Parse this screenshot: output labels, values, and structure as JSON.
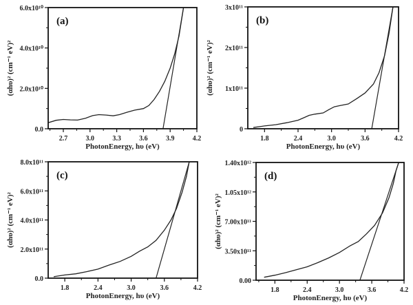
{
  "chart_data": [
    {
      "type": "line",
      "panel_label": "(a)",
      "xlabel": "PhotonEnergy, hυ (eV)",
      "ylabel": "(αhυ)² (cm⁻¹ eV)²",
      "xlim": [
        2.53,
        4.2
      ],
      "ylim": [
        0,
        60000000000.0
      ],
      "xticks": [
        2.7,
        3.0,
        3.3,
        3.6,
        3.9,
        4.2
      ],
      "xtick_labels": [
        "2.7",
        "3.0",
        "3.3",
        "3.6",
        "3.9",
        "4.2"
      ],
      "yticks": [
        0,
        20000000000.0,
        40000000000.0,
        60000000000.0
      ],
      "ytick_labels": [
        "0.0",
        "2.0x10¹⁰",
        "4.0x10¹⁰",
        "6.0x10¹⁰"
      ],
      "series": [
        {
          "name": "data",
          "x": [
            2.53,
            2.62,
            2.7,
            2.78,
            2.86,
            2.95,
            3.03,
            3.1,
            3.18,
            3.26,
            3.33,
            3.42,
            3.5,
            3.6,
            3.66,
            3.72,
            3.78,
            3.84,
            3.9,
            3.95,
            4.0,
            4.05
          ],
          "y": [
            3000000000.0,
            4200000000.0,
            4600000000.0,
            4400000000.0,
            4300000000.0,
            5200000000.0,
            6500000000.0,
            7000000000.0,
            6800000000.0,
            6400000000.0,
            7000000000.0,
            8200000000.0,
            9200000000.0,
            10000000000.0,
            11500000000.0,
            14500000000.0,
            18500000000.0,
            23500000000.0,
            30000000000.0,
            37000000000.0,
            46000000000.0,
            60000000000.0
          ]
        }
      ],
      "tangent": {
        "x": [
          3.82,
          4.05
        ],
        "y": [
          0,
          60000000000.0
        ]
      }
    },
    {
      "type": "line",
      "panel_label": "(b)",
      "xlabel": "PhotonEnergy, hυ (eV)",
      "ylabel": "(αhυ)² (cm⁻¹ eV)²",
      "xlim": [
        1.5,
        4.2
      ],
      "ylim": [
        0,
        300000000000.0
      ],
      "xticks": [
        1.8,
        2.4,
        3.0,
        3.6,
        4.2
      ],
      "xtick_labels": [
        "1.8",
        "2.4",
        "3.0",
        "3.6",
        "4.2"
      ],
      "yticks": [
        0,
        100000000000.0,
        200000000000.0,
        300000000000.0
      ],
      "ytick_labels": [
        "0",
        "1x10¹¹",
        "2x10¹¹",
        "3x10¹¹"
      ],
      "series": [
        {
          "name": "data",
          "x": [
            1.6,
            1.8,
            2.0,
            2.2,
            2.4,
            2.5,
            2.6,
            2.7,
            2.85,
            2.95,
            3.05,
            3.15,
            3.3,
            3.45,
            3.6,
            3.75,
            3.85,
            3.95,
            4.03,
            4.1
          ],
          "y": [
            3000000000.0,
            7000000000.0,
            10000000000.0,
            15000000000.0,
            21000000000.0,
            27000000000.0,
            33000000000.0,
            36000000000.0,
            39000000000.0,
            47000000000.0,
            54000000000.0,
            57000000000.0,
            61000000000.0,
            74000000000.0,
            88000000000.0,
            110000000000.0,
            138000000000.0,
            180000000000.0,
            235000000000.0,
            300000000000.0
          ]
        }
      ],
      "tangent": {
        "x": [
          3.72,
          4.1
        ],
        "y": [
          0,
          300000000000.0
        ]
      }
    },
    {
      "type": "line",
      "panel_label": "(c)",
      "xlabel": "PhotonEnergy, hυ (eV)",
      "ylabel": "(αhυ)² (cm⁻¹ eV)²",
      "xlim": [
        1.5,
        4.2
      ],
      "ylim": [
        0,
        800000000000.0
      ],
      "xticks": [
        1.8,
        2.4,
        3.0,
        3.6,
        4.2
      ],
      "xtick_labels": [
        "1.8",
        "2.4",
        "3.0",
        "3.6",
        "4.2"
      ],
      "yticks": [
        0,
        200000000000.0,
        400000000000.0,
        600000000000.0,
        800000000000.0
      ],
      "ytick_labels": [
        "0.0",
        "2.0x10¹¹",
        "4.0x10¹¹",
        "6.0x10¹¹",
        "8.0x10¹¹"
      ],
      "series": [
        {
          "name": "data",
          "x": [
            1.6,
            1.8,
            2.0,
            2.2,
            2.4,
            2.6,
            2.8,
            3.0,
            3.15,
            3.3,
            3.45,
            3.6,
            3.72,
            3.82,
            3.92,
            4.0,
            4.05
          ],
          "y": [
            10000000000.0,
            22000000000.0,
            30000000000.0,
            45000000000.0,
            62000000000.0,
            90000000000.0,
            115000000000.0,
            150000000000.0,
            185000000000.0,
            215000000000.0,
            260000000000.0,
            330000000000.0,
            400000000000.0,
            480000000000.0,
            590000000000.0,
            700000000000.0,
            800000000000.0
          ]
        }
      ],
      "tangent": {
        "x": [
          3.45,
          4.05
        ],
        "y": [
          0,
          800000000000.0
        ]
      }
    },
    {
      "type": "line",
      "panel_label": "(d)",
      "xlabel": "PhotonEnergy, hυ (eV)",
      "ylabel": "(αhυ)² (cm⁻¹ eV)²",
      "xlim": [
        1.45,
        4.2
      ],
      "ylim": [
        0,
        1400000000000.0
      ],
      "xticks": [
        1.8,
        2.4,
        3.0,
        3.6,
        4.2
      ],
      "xtick_labels": [
        "1.8",
        "2.4",
        "3.0",
        "3.6",
        "4.2"
      ],
      "yticks": [
        0,
        350000000000.0,
        700000000000.0,
        1050000000000.0,
        1400000000000.0
      ],
      "ytick_labels": [
        "0.00",
        "3.50x10¹¹",
        "7.00x10¹¹",
        "1.05x10¹²",
        "1.40x10¹²"
      ],
      "series": [
        {
          "name": "data",
          "x": [
            1.6,
            1.8,
            2.0,
            2.2,
            2.4,
            2.6,
            2.8,
            3.0,
            3.2,
            3.35,
            3.5,
            3.65,
            3.8,
            3.92,
            4.0,
            4.05,
            4.1
          ],
          "y": [
            35000000000.0,
            60000000000.0,
            90000000000.0,
            125000000000.0,
            160000000000.0,
            210000000000.0,
            265000000000.0,
            330000000000.0,
            410000000000.0,
            460000000000.0,
            550000000000.0,
            650000000000.0,
            800000000000.0,
            980000000000.0,
            1150000000000.0,
            1300000000000.0,
            1400000000000.0
          ]
        }
      ],
      "tangent": {
        "x": [
          3.38,
          4.1
        ],
        "y": [
          0,
          1400000000000.0
        ]
      }
    }
  ]
}
